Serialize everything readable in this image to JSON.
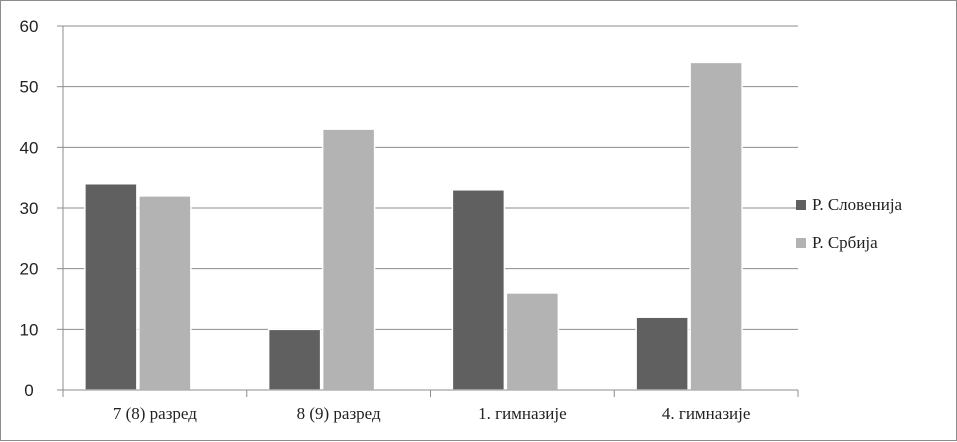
{
  "chart_data": {
    "type": "bar",
    "categories": [
      "7 (8) разред",
      "8 (9) разред",
      "1. гимназије",
      "4. гимназије"
    ],
    "series": [
      {
        "name": "Р. Словенија",
        "values": [
          34,
          10,
          33,
          12
        ],
        "color": "#606060"
      },
      {
        "name": "Р. Србија",
        "values": [
          32,
          43,
          16,
          54
        ],
        "color": "#b3b3b3"
      }
    ],
    "ylim": [
      0,
      60
    ],
    "yticks": [
      0,
      10,
      20,
      30,
      40,
      50,
      60
    ],
    "grid": true,
    "legend": "right"
  }
}
